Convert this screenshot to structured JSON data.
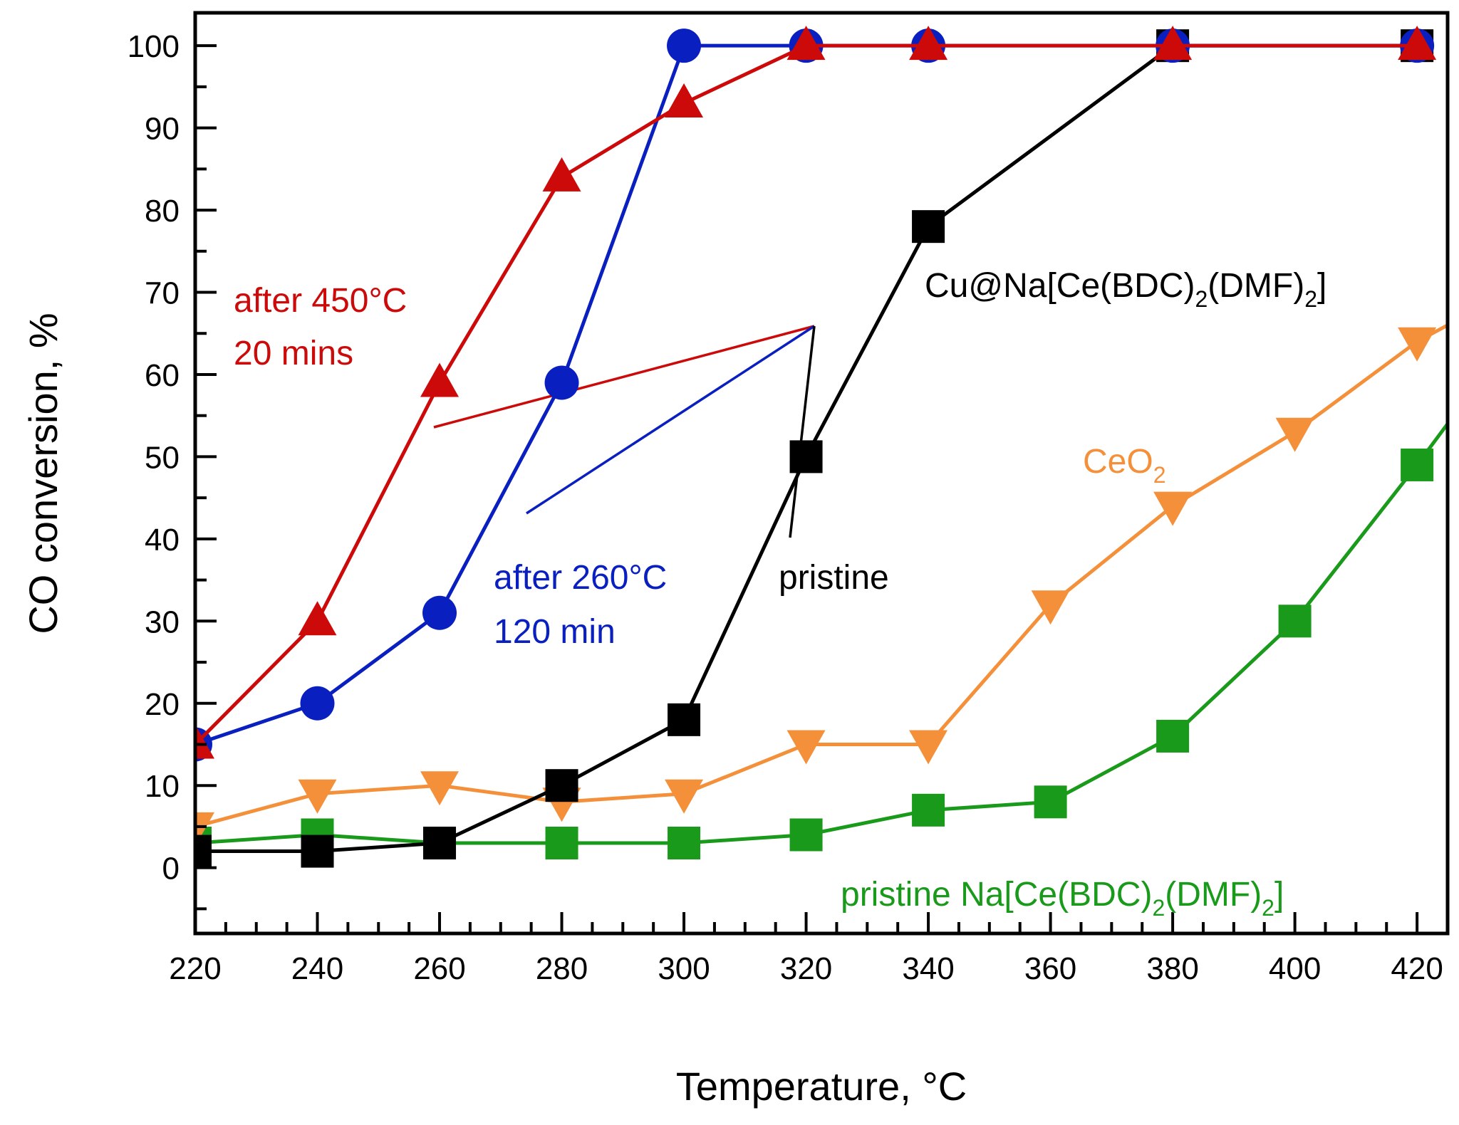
{
  "chart_data": {
    "type": "line",
    "title": "",
    "xlabel": "Temperature, °C",
    "ylabel": "CO conversion, %",
    "xlim": [
      220,
      425
    ],
    "ylim": [
      -8,
      104
    ],
    "x_ticks": [
      220,
      240,
      260,
      280,
      300,
      320,
      340,
      360,
      380,
      400,
      420
    ],
    "y_ticks": [
      0,
      10,
      20,
      30,
      40,
      50,
      60,
      70,
      80,
      90,
      100
    ],
    "grid": false,
    "series": [
      {
        "name": "pristine Na[Ce(BDC)2(DMF)2]",
        "color": "#1a9a1a",
        "marker": "square",
        "x": [
          220,
          240,
          260,
          280,
          300,
          320,
          340,
          360,
          380,
          400,
          420,
          425
        ],
        "values": [
          3,
          4,
          3,
          3,
          3,
          4,
          7,
          8,
          16,
          30,
          49,
          54
        ]
      },
      {
        "name": "CeO2",
        "color": "#f5903a",
        "marker": "triangle-down",
        "x": [
          220,
          240,
          260,
          280,
          300,
          320,
          340,
          360,
          380,
          400,
          420,
          425
        ],
        "values": [
          5,
          9,
          10,
          8,
          9,
          15,
          15,
          32,
          44,
          53,
          64,
          66
        ]
      },
      {
        "name": "pristine",
        "color": "#000000",
        "marker": "square",
        "x": [
          220,
          240,
          260,
          280,
          300,
          320,
          340,
          380,
          420
        ],
        "values": [
          2,
          2,
          3,
          10,
          18,
          50,
          78,
          100,
          100
        ]
      },
      {
        "name": "after 260°C 120 min",
        "color": "#0a1fbf",
        "marker": "circle",
        "x": [
          220,
          240,
          260,
          280,
          300,
          320,
          340,
          380,
          420
        ],
        "values": [
          15,
          20,
          31,
          59,
          100,
          100,
          100,
          100,
          100
        ]
      },
      {
        "name": "after 450°C 20 mins",
        "color": "#cc0a0a",
        "marker": "triangle-up",
        "x": [
          220,
          240,
          260,
          280,
          300,
          320,
          340,
          380,
          420
        ],
        "values": [
          15,
          30,
          59,
          84,
          93,
          100,
          100,
          100,
          100
        ]
      }
    ],
    "annotations": {
      "red": {
        "line1": "after 450°C",
        "line2": "20 mins",
        "color": "#cc0a0a"
      },
      "blue": {
        "line1": "after 260°C",
        "line2": "120 min",
        "color": "#0a1fbf"
      },
      "black": {
        "text": "pristine",
        "color": "#000000"
      },
      "catalyst": {
        "prefix": "Cu@Na[Ce(BDC)",
        "sub1": "2",
        "mid": "(DMF)",
        "sub2": "2",
        "suffix": "]",
        "color": "#000000"
      },
      "ceo2": {
        "prefix": "CeO",
        "sub": "2",
        "color": "#f5903a"
      },
      "green": {
        "prefix": "pristine Na[Ce(BDC)",
        "sub1": "2",
        "mid": "(DMF)",
        "sub2": "2",
        "suffix": "]",
        "color": "#1a9a1a"
      }
    },
    "pointer_lines": [
      {
        "color": "#cc0a0a",
        "from": [
          1143,
          458
        ],
        "to": [
          609,
          600
        ]
      },
      {
        "color": "#0a1fbf",
        "from": [
          1143,
          458
        ],
        "to": [
          739,
          721
        ]
      },
      {
        "color": "#000000",
        "from": [
          1143,
          458
        ],
        "to": [
          1109,
          755
        ]
      }
    ]
  }
}
